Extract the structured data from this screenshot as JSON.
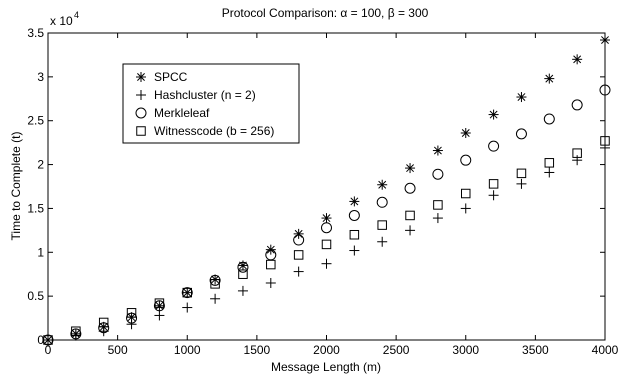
{
  "chart_data": {
    "type": "scatter",
    "title": "Protocol Comparison: α = 100, β = 300",
    "xlabel": "Message Length (m)",
    "ylabel": "Time to Complete (t)",
    "y_multiplier_label": "x 10",
    "y_multiplier_exponent": "4",
    "xlim": [
      0,
      4000
    ],
    "ylim": [
      0,
      3.5
    ],
    "xticks": [
      0,
      500,
      1000,
      1500,
      2000,
      2500,
      3000,
      3500,
      4000
    ],
    "xtick_labels": [
      "0",
      "500",
      "1000",
      "1500",
      "2000",
      "2500",
      "3000",
      "3500",
      "4000"
    ],
    "yticks": [
      0,
      0.5,
      1,
      1.5,
      2,
      2.5,
      3,
      3.5
    ],
    "ytick_labels": [
      "0",
      "0.5",
      "1",
      "1.5",
      "2",
      "2.5",
      "3",
      "3.5"
    ],
    "grid": false,
    "legend_position": "upper-left",
    "x": [
      0,
      200,
      400,
      600,
      800,
      1000,
      1200,
      1400,
      1600,
      1800,
      2000,
      2200,
      2400,
      2600,
      2800,
      3000,
      3200,
      3400,
      3600,
      3800,
      4000
    ],
    "series": [
      {
        "name": "SPCC",
        "marker": "asterisk",
        "values": [
          0.0,
          0.07,
          0.15,
          0.26,
          0.39,
          0.54,
          0.69,
          0.85,
          1.03,
          1.21,
          1.39,
          1.58,
          1.77,
          1.96,
          2.16,
          2.36,
          2.57,
          2.77,
          2.98,
          3.2,
          3.42
        ]
      },
      {
        "name": "Hashcluster (n = 2)",
        "marker": "plus",
        "values": [
          0.0,
          0.05,
          0.1,
          0.18,
          0.28,
          0.37,
          0.47,
          0.56,
          0.65,
          0.78,
          0.87,
          1.02,
          1.12,
          1.25,
          1.39,
          1.5,
          1.65,
          1.78,
          1.91,
          2.05,
          2.19
        ]
      },
      {
        "name": "Merkleleaf",
        "marker": "circle",
        "values": [
          0.0,
          0.07,
          0.14,
          0.25,
          0.39,
          0.54,
          0.68,
          0.83,
          0.97,
          1.14,
          1.28,
          1.42,
          1.57,
          1.73,
          1.89,
          2.05,
          2.21,
          2.35,
          2.52,
          2.68,
          2.85
        ]
      },
      {
        "name": "Witnesscode (b = 256)",
        "marker": "square",
        "values": [
          0.0,
          0.1,
          0.2,
          0.31,
          0.42,
          0.54,
          0.64,
          0.75,
          0.86,
          0.97,
          1.09,
          1.2,
          1.31,
          1.42,
          1.54,
          1.67,
          1.78,
          1.9,
          2.02,
          2.13,
          2.27
        ]
      }
    ]
  }
}
